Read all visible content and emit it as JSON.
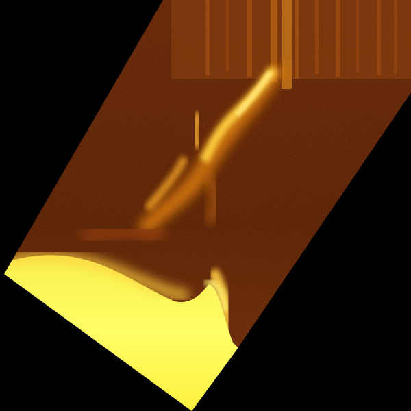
{
  "image": {
    "subject": "solar-prominence",
    "colormap": "heat",
    "background_color": "#000000",
    "colors": {
      "frame_dark": "#4a1400",
      "frame_mid": "#6e2808",
      "streaks": "#a64a0e",
      "plasma_bright": "#ffcf40",
      "plasma_glow": "#e08a1c",
      "limb_yellow": "#ffff5a",
      "limb_core": "#fff07a"
    }
  }
}
